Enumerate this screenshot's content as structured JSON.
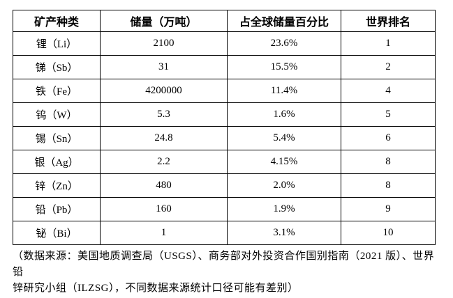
{
  "table": {
    "headers": [
      "矿产种类",
      "储量（万吨）",
      "占全球储量百分比",
      "世界排名"
    ],
    "rows": [
      [
        "锂（Li）",
        "2100",
        "23.6%",
        "1"
      ],
      [
        "锑（Sb）",
        "31",
        "15.5%",
        "2"
      ],
      [
        "铁（Fe）",
        "4200000",
        "11.4%",
        "4"
      ],
      [
        "钨（W）",
        "5.3",
        "1.6%",
        "5"
      ],
      [
        "锡（Sn）",
        "24.8",
        "5.4%",
        "6"
      ],
      [
        "银（Ag）",
        "2.2",
        "4.15%",
        "8"
      ],
      [
        "锌（Zn）",
        "480",
        "2.0%",
        "8"
      ],
      [
        "铅（Pb）",
        "160",
        "1.9%",
        "9"
      ],
      [
        "铋（Bi）",
        "1",
        "3.1%",
        "10"
      ]
    ]
  },
  "footer": {
    "line1": "（数据来源：美国地质调查局（USGS）、商务部对外投资合作国别指南（2021 版）、世界铅",
    "line2": "锌研究小组（ILZSG），不同数据来源统计口径可能有差别）"
  }
}
